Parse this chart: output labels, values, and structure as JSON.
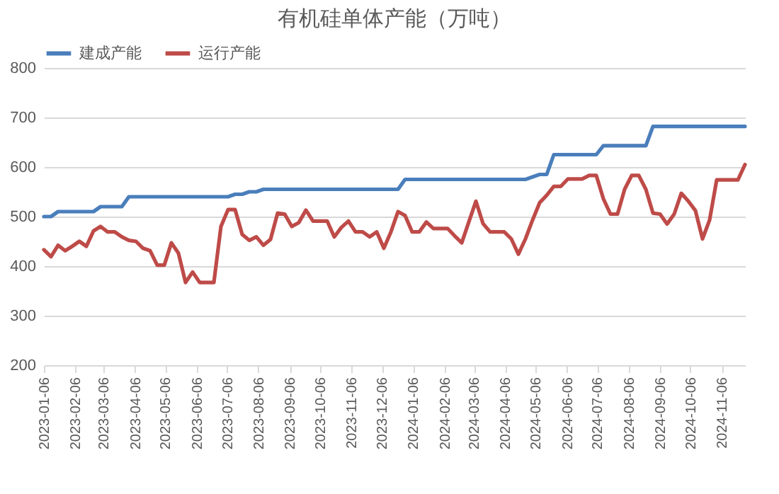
{
  "chart_data": {
    "type": "line",
    "title": "有机硅单体产能（万吨）",
    "x": [
      "2023-01-06",
      "2023-01-13",
      "2023-01-20",
      "2023-01-27",
      "2023-02-03",
      "2023-02-10",
      "2023-02-17",
      "2023-02-24",
      "2023-03-03",
      "2023-03-10",
      "2023-03-17",
      "2023-03-24",
      "2023-03-31",
      "2023-04-07",
      "2023-04-14",
      "2023-04-21",
      "2023-04-28",
      "2023-05-05",
      "2023-05-12",
      "2023-05-19",
      "2023-05-26",
      "2023-06-02",
      "2023-06-09",
      "2023-06-16",
      "2023-06-23",
      "2023-06-30",
      "2023-07-07",
      "2023-07-14",
      "2023-07-21",
      "2023-07-28",
      "2023-08-04",
      "2023-08-11",
      "2023-08-18",
      "2023-08-25",
      "2023-09-01",
      "2023-09-08",
      "2023-09-15",
      "2023-09-22",
      "2023-09-29",
      "2023-10-06",
      "2023-10-13",
      "2023-10-20",
      "2023-10-27",
      "2023-11-03",
      "2023-11-10",
      "2023-11-17",
      "2023-11-24",
      "2023-12-01",
      "2023-12-08",
      "2023-12-15",
      "2023-12-22",
      "2023-12-29",
      "2024-01-05",
      "2024-01-12",
      "2024-01-19",
      "2024-01-26",
      "2024-02-02",
      "2024-02-09",
      "2024-02-16",
      "2024-02-23",
      "2024-03-01",
      "2024-03-08",
      "2024-03-15",
      "2024-03-22",
      "2024-03-29",
      "2024-04-05",
      "2024-04-12",
      "2024-04-19",
      "2024-04-26",
      "2024-05-03",
      "2024-05-10",
      "2024-05-17",
      "2024-05-24",
      "2024-05-31",
      "2024-06-07",
      "2024-06-14",
      "2024-06-21",
      "2024-06-28",
      "2024-07-05",
      "2024-07-12",
      "2024-07-19",
      "2024-07-26",
      "2024-08-02",
      "2024-08-09",
      "2024-08-16",
      "2024-08-23",
      "2024-08-30",
      "2024-09-06",
      "2024-09-13",
      "2024-09-20",
      "2024-09-27",
      "2024-10-04",
      "2024-10-11",
      "2024-10-18",
      "2024-10-25",
      "2024-11-01",
      "2024-11-08",
      "2024-11-15",
      "2024-11-22",
      "2024-11-29"
    ],
    "series": [
      {
        "name": "建成产能",
        "color": "#4a7ebb",
        "values": [
          500,
          500,
          510,
          510,
          510,
          510,
          510,
          510,
          520,
          520,
          520,
          520,
          540,
          540,
          540,
          540,
          540,
          540,
          540,
          540,
          540,
          540,
          540,
          540,
          540,
          540,
          540,
          545,
          545,
          550,
          550,
          555,
          555,
          555,
          555,
          555,
          555,
          555,
          555,
          555,
          555,
          555,
          555,
          555,
          555,
          555,
          555,
          555,
          555,
          555,
          555,
          575,
          575,
          575,
          575,
          575,
          575,
          575,
          575,
          575,
          575,
          575,
          575,
          575,
          575,
          575,
          575,
          575,
          575,
          580,
          585,
          585,
          625,
          625,
          625,
          625,
          625,
          625,
          625,
          643,
          643,
          643,
          643,
          643,
          643,
          643,
          682,
          682,
          682,
          682,
          682,
          682,
          682,
          682,
          682,
          682,
          682,
          682,
          682,
          682
        ]
      },
      {
        "name": "运行产能",
        "color": "#be4b48",
        "values": [
          433,
          419,
          442,
          431,
          440,
          450,
          440,
          471,
          480,
          469,
          469,
          459,
          452,
          450,
          436,
          431,
          402,
          402,
          447,
          426,
          367,
          388,
          367,
          367,
          367,
          480,
          514,
          514,
          464,
          452,
          459,
          442,
          454,
          507,
          505,
          480,
          488,
          513,
          491,
          491,
          491,
          459,
          478,
          491,
          469,
          469,
          459,
          469,
          436,
          469,
          510,
          502,
          469,
          469,
          489,
          476,
          476,
          476,
          461,
          447,
          489,
          531,
          486,
          469,
          469,
          469,
          455,
          424,
          455,
          493,
          528,
          543,
          561,
          561,
          576,
          576,
          576,
          583,
          583,
          536,
          505,
          505,
          555,
          583,
          583,
          555,
          507,
          505,
          485,
          505,
          547,
          531,
          512,
          455,
          493,
          574,
          574,
          574,
          574,
          605
        ]
      }
    ],
    "xlim": [
      "2023-01-06",
      "2024-11-29"
    ],
    "xticks": [
      "2023-01-06",
      "2023-02-06",
      "2023-03-06",
      "2023-04-06",
      "2023-05-06",
      "2023-06-06",
      "2023-07-06",
      "2023-08-06",
      "2023-09-06",
      "2023-10-06",
      "2023-11-06",
      "2023-12-06",
      "2024-01-06",
      "2024-02-06",
      "2024-03-06",
      "2024-04-06",
      "2024-05-06",
      "2024-06-06",
      "2024-07-06",
      "2024-08-06",
      "2024-09-06",
      "2024-10-06",
      "2024-11-06"
    ],
    "ylim": [
      200,
      800
    ],
    "yticks": [
      200,
      300,
      400,
      500,
      600,
      700,
      800
    ],
    "grid": "y",
    "legend": "top",
    "marker": "none",
    "line_style": "solid"
  }
}
